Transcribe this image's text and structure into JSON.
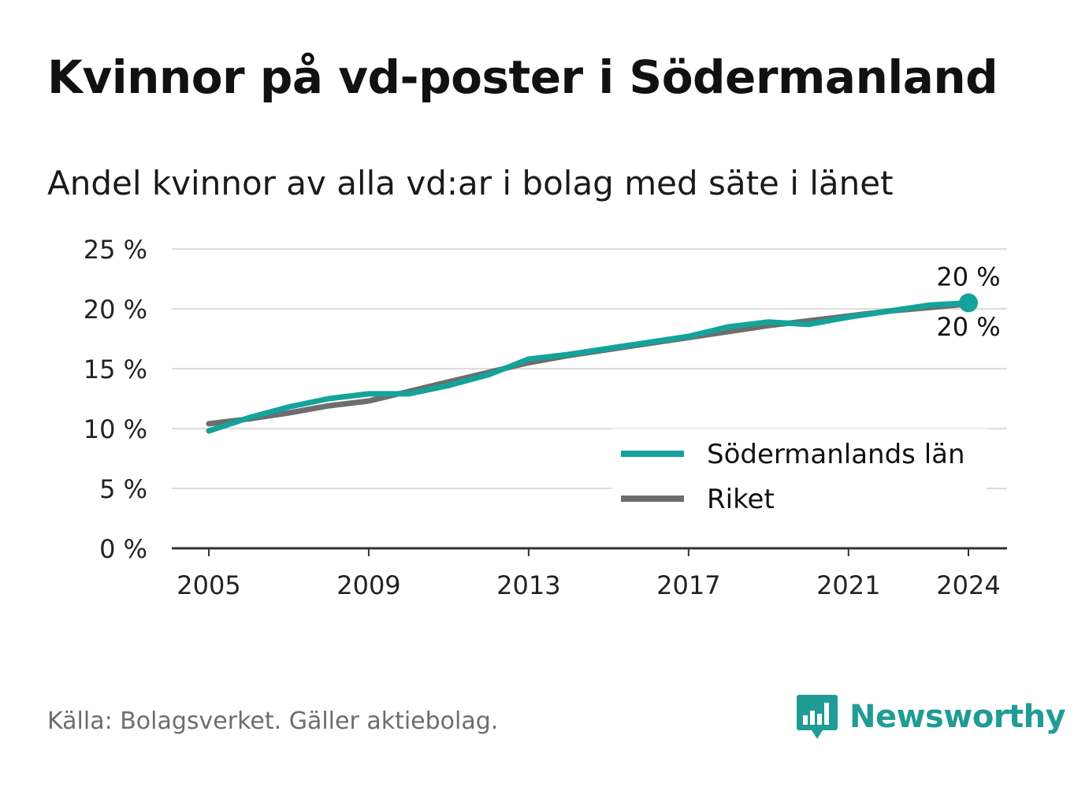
{
  "title": "Kvinnor på vd-poster i Södermanland",
  "subtitle": "Andel kvinnor av alla vd:ar i bolag med säte i länet",
  "source": "Källa: Bolagsverket. Gäller aktiebolag.",
  "brand": {
    "name": "Newsworthy",
    "icon": "bar-chart-speech-bubble-icon",
    "color": "#1f9c96"
  },
  "chart_data": {
    "type": "line",
    "x": [
      2005,
      2006,
      2007,
      2008,
      2009,
      2010,
      2011,
      2012,
      2013,
      2014,
      2015,
      2016,
      2017,
      2018,
      2019,
      2020,
      2021,
      2022,
      2023,
      2024
    ],
    "x_ticks": [
      2005,
      2009,
      2013,
      2017,
      2021,
      2024
    ],
    "ylim": [
      0,
      25
    ],
    "y_ticks": [
      0,
      5,
      10,
      15,
      20,
      25
    ],
    "y_tick_labels": [
      "0 %",
      "5 %",
      "10 %",
      "15 %",
      "20 %",
      "25 %"
    ],
    "grid": true,
    "legend_position": "bottom-right",
    "series": [
      {
        "name": "Riket",
        "color": "#6d6d6f",
        "values": [
          10.4,
          10.8,
          11.3,
          11.9,
          12.3,
          13.1,
          13.9,
          14.7,
          15.5,
          16.1,
          16.6,
          17.1,
          17.6,
          18.1,
          18.6,
          19.0,
          19.4,
          19.8,
          20.1,
          20.4
        ]
      },
      {
        "name": "Södermanlands län",
        "color": "#14a39a",
        "values": [
          9.8,
          10.9,
          11.8,
          12.5,
          12.9,
          12.9,
          13.6,
          14.5,
          15.8,
          16.2,
          16.7,
          17.2,
          17.7,
          18.5,
          18.9,
          18.7,
          19.3,
          19.8,
          20.3,
          20.5
        ]
      }
    ],
    "annotations": [
      {
        "text": "20 %",
        "series": "Södermanlands län",
        "x": 2024,
        "placement": "above"
      },
      {
        "text": "20 %",
        "series": "Riket",
        "x": 2024,
        "placement": "below"
      }
    ]
  }
}
